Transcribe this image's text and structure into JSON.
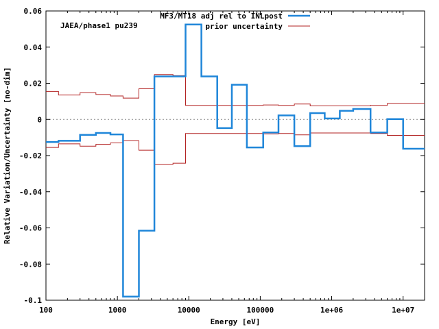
{
  "chart_data": {
    "type": "line",
    "title": "",
    "annotation": "JAEA/phase1 pu239",
    "xlabel": "Energy [eV]",
    "ylabel": "Relative Variation/Uncertainty [no-dim]",
    "xscale": "log",
    "xlim": [
      100,
      20000000
    ],
    "ylim": [
      -0.1,
      0.06
    ],
    "x_tick_labels": [
      "100",
      "1000",
      "10000",
      "100000",
      "1e+06",
      "1e+07"
    ],
    "y_tick_labels": [
      "-0.1",
      "-0.08",
      "-0.06",
      "-0.04",
      "-0.02",
      "0",
      "0.02",
      "0.04",
      "0.06"
    ],
    "grid": false,
    "legend_position": "top",
    "zero_line": "dotted",
    "colors": {
      "adjustment": "#1f86d9",
      "prior": "#b22222",
      "zero": "#888888"
    },
    "series": [
      {
        "name": "MF3/MT18 adj rel to INLpost",
        "style": "step",
        "bin_edges": [
          100,
          150,
          300,
          500,
          800,
          1200,
          2000,
          3300,
          6000,
          9000,
          15000,
          25000,
          40000,
          65000,
          110000,
          180000,
          300000,
          500000,
          800000,
          1300000,
          2000000,
          3500000,
          6000000,
          10000000,
          20000000
        ],
        "values": [
          -0.0125,
          -0.0118,
          -0.0085,
          -0.0075,
          -0.0083,
          -0.098,
          -0.0615,
          0.0238,
          0.0238,
          0.0525,
          0.0238,
          -0.0048,
          0.0192,
          -0.0155,
          -0.0072,
          0.0022,
          -0.0148,
          0.0035,
          0.0005,
          0.0048,
          0.0058,
          -0.0072,
          0.0002,
          -0.0162
        ]
      },
      {
        "name": "prior uncertainty",
        "style": "step",
        "mirrored": true,
        "bin_edges": [
          100,
          150,
          300,
          500,
          800,
          1200,
          2000,
          3300,
          6000,
          9000,
          15000,
          25000,
          40000,
          65000,
          110000,
          180000,
          300000,
          500000,
          800000,
          1300000,
          2000000,
          3500000,
          6000000,
          10000000,
          20000000
        ],
        "values": [
          0.0155,
          0.0135,
          0.0148,
          0.0138,
          0.013,
          0.0118,
          0.017,
          0.0248,
          0.0242,
          0.0078,
          0.0078,
          0.0078,
          0.0078,
          0.0078,
          0.008,
          0.0078,
          0.0085,
          0.0075,
          0.0075,
          0.0075,
          0.0075,
          0.0078,
          0.0088,
          0.0088
        ]
      }
    ]
  }
}
